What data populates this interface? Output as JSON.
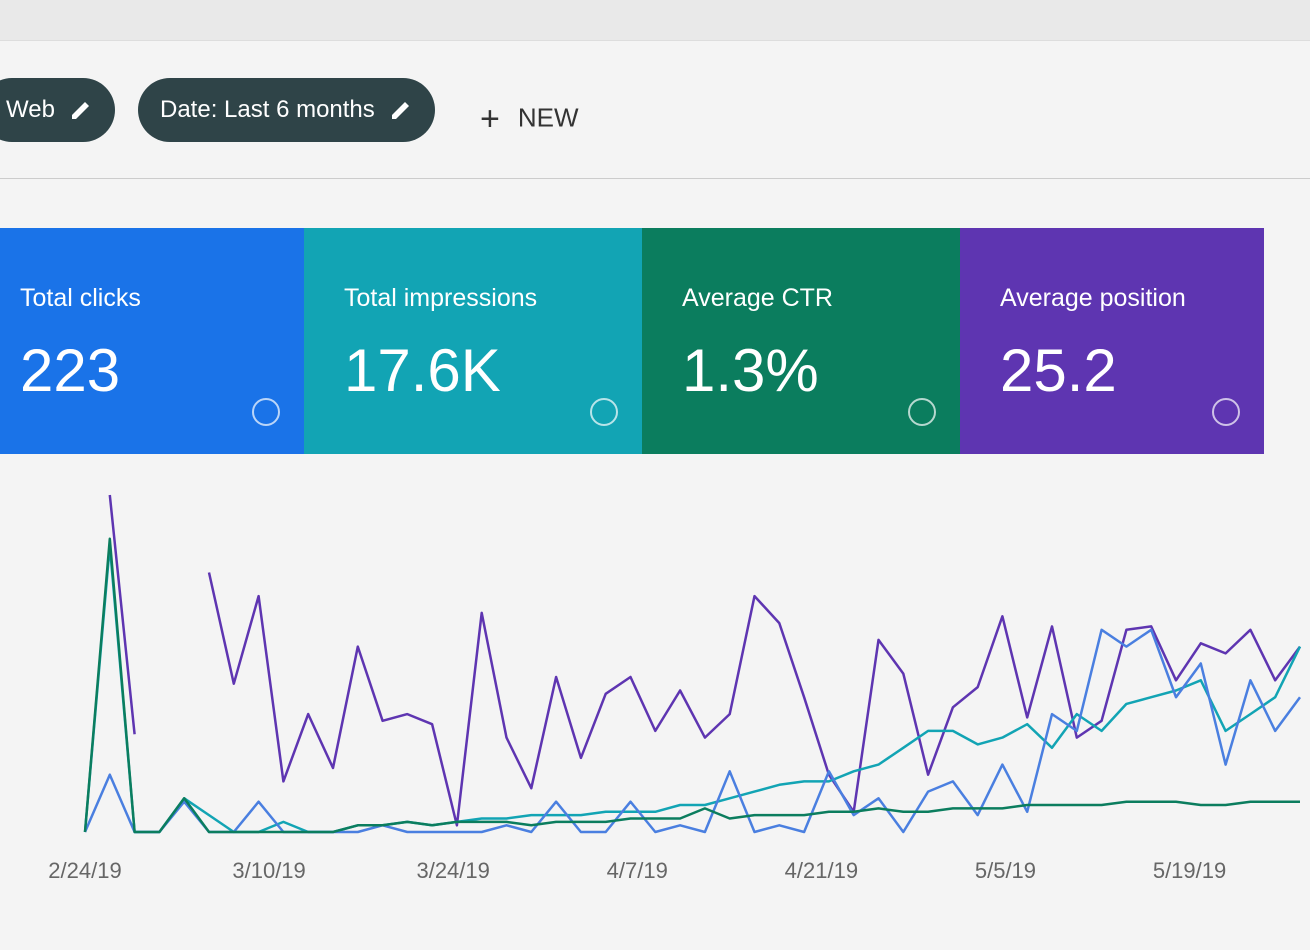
{
  "filters": [
    {
      "label": "Web"
    },
    {
      "label": "Date: Last 6 months"
    }
  ],
  "new_button": "NEW",
  "metrics": [
    {
      "label": "Total clicks",
      "value": "223",
      "color": "#1a73e8"
    },
    {
      "label": "Total impressions",
      "value": "17.6K",
      "color": "#12a4b4"
    },
    {
      "label": "Average CTR",
      "value": "1.3%",
      "color": "#0b7d5e"
    },
    {
      "label": "Average position",
      "value": "25.2",
      "color": "#5e35b1"
    }
  ],
  "chart_data": {
    "type": "line",
    "x_labels": [
      "2/24/19",
      "3/10/19",
      "3/24/19",
      "4/7/19",
      "4/21/19",
      "5/5/19",
      "5/19/19"
    ],
    "ylim": [
      0,
      100
    ],
    "series": [
      {
        "color": "#5e35b1",
        "values": [
          null,
          100,
          29,
          null,
          null,
          77,
          44,
          70,
          15,
          35,
          19,
          55,
          33,
          35,
          32,
          2,
          65,
          28,
          13,
          46,
          22,
          41,
          46,
          30,
          42,
          28,
          35,
          70,
          62,
          40,
          17,
          6,
          57,
          47,
          17,
          37,
          43,
          64,
          34,
          61,
          28,
          33,
          60,
          61,
          45,
          56,
          53,
          60,
          45,
          55
        ]
      },
      {
        "color": "#12a4b4",
        "values": [
          0,
          85,
          0,
          0,
          10,
          5,
          0,
          0,
          3,
          0,
          0,
          2,
          2,
          3,
          2,
          3,
          4,
          4,
          5,
          5,
          5,
          6,
          6,
          6,
          8,
          8,
          10,
          12,
          14,
          15,
          15,
          18,
          20,
          25,
          30,
          30,
          26,
          28,
          32,
          25,
          35,
          30,
          38,
          40,
          42,
          45,
          30,
          35,
          40,
          55
        ]
      },
      {
        "color": "#4a7fe0",
        "values": [
          0,
          17,
          0,
          0,
          9,
          0,
          0,
          9,
          0,
          0,
          0,
          0,
          2,
          0,
          0,
          0,
          0,
          2,
          0,
          9,
          0,
          0,
          9,
          0,
          2,
          0,
          18,
          0,
          2,
          0,
          18,
          5,
          10,
          0,
          12,
          15,
          5,
          20,
          6,
          35,
          30,
          60,
          55,
          60,
          40,
          50,
          20,
          45,
          30,
          40
        ]
      },
      {
        "color": "#0b7d5e",
        "values": [
          0,
          87,
          0,
          0,
          10,
          0,
          0,
          0,
          0,
          0,
          0,
          2,
          2,
          3,
          2,
          3,
          3,
          3,
          2,
          3,
          3,
          3,
          4,
          4,
          4,
          7,
          4,
          5,
          5,
          5,
          6,
          6,
          7,
          6,
          6,
          7,
          7,
          7,
          8,
          8,
          8,
          8,
          9,
          9,
          9,
          8,
          8,
          9,
          9,
          9
        ]
      }
    ]
  }
}
